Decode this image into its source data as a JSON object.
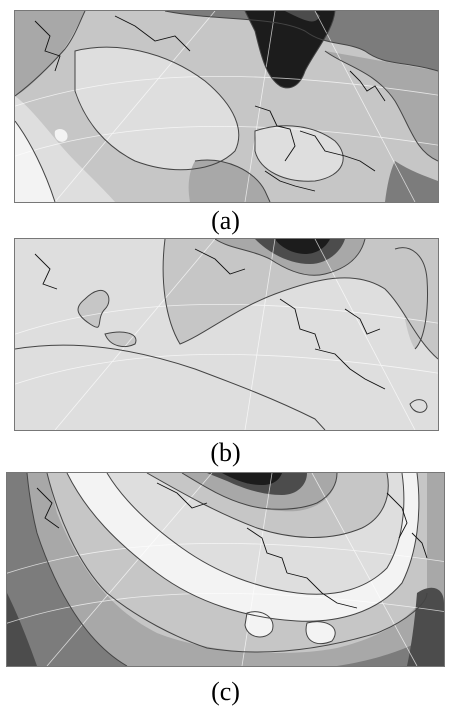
{
  "figure": {
    "panels": [
      {
        "id": "a",
        "caption": "(a)"
      },
      {
        "id": "b",
        "caption": "(b)"
      },
      {
        "id": "c",
        "caption": "(c)"
      }
    ]
  },
  "colors": {
    "level_1": "#f3f3f3",
    "level_2": "#dedede",
    "level_3": "#c6c6c6",
    "level_4": "#a8a8a8",
    "level_5": "#7c7c7c",
    "level_6": "#4c4c4c",
    "level_7": "#1c1c1c",
    "contour": "#444444",
    "coastline": "#111111",
    "graticule": "#ffffff"
  }
}
